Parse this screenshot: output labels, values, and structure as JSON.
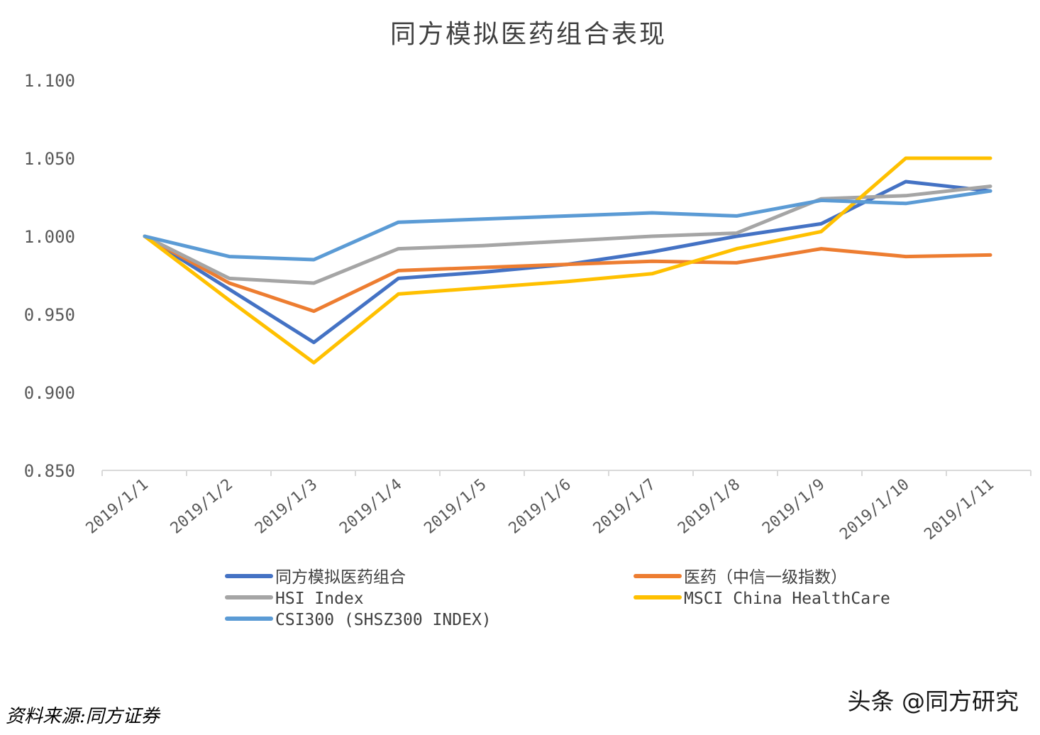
{
  "chart_data": {
    "type": "line",
    "title": "同方模拟医药组合表现",
    "xlabel": "",
    "ylabel": "",
    "categories": [
      "2019/1/1",
      "2019/1/2",
      "2019/1/3",
      "2019/1/4",
      "2019/1/5",
      "2019/1/6",
      "2019/1/7",
      "2019/1/8",
      "2019/1/9",
      "2019/1/10",
      "2019/1/11"
    ],
    "ylim": [
      0.85,
      1.1
    ],
    "yticks": [
      0.85,
      0.9,
      0.95,
      1.0,
      1.05,
      1.1
    ],
    "ytick_labels": [
      "0.850",
      "0.900",
      "0.950",
      "1.000",
      "1.050",
      "1.100"
    ],
    "grid": false,
    "legend_position": "bottom",
    "series": [
      {
        "name": "同方模拟医药组合",
        "color": "#4472C4",
        "values": [
          1.0,
          0.966,
          0.932,
          0.973,
          0.977,
          0.982,
          0.99,
          1.0,
          1.008,
          1.035,
          1.029
        ]
      },
      {
        "name": "医药（中信一级指数）",
        "color": "#ED7D31",
        "values": [
          1.0,
          0.97,
          0.952,
          0.978,
          0.98,
          0.982,
          0.984,
          0.983,
          0.992,
          0.987,
          0.988
        ]
      },
      {
        "name": "HSI Index",
        "color": "#A5A5A5",
        "values": [
          1.0,
          0.973,
          0.97,
          0.992,
          0.994,
          0.997,
          1.0,
          1.002,
          1.024,
          1.026,
          1.032
        ]
      },
      {
        "name": "MSCI China HealthCare",
        "color": "#FFC000",
        "values": [
          1.0,
          0.959,
          0.919,
          0.963,
          0.967,
          0.971,
          0.976,
          0.992,
          1.003,
          1.05,
          1.05
        ]
      },
      {
        "name": "CSI300 (SHSZ300 INDEX)",
        "color": "#5B9BD5",
        "values": [
          1.0,
          0.987,
          0.985,
          1.009,
          1.011,
          1.013,
          1.015,
          1.013,
          1.023,
          1.021,
          1.029
        ]
      }
    ]
  },
  "source_note": "资料来源:同方证券",
  "watermark": "头条 @同方研究"
}
